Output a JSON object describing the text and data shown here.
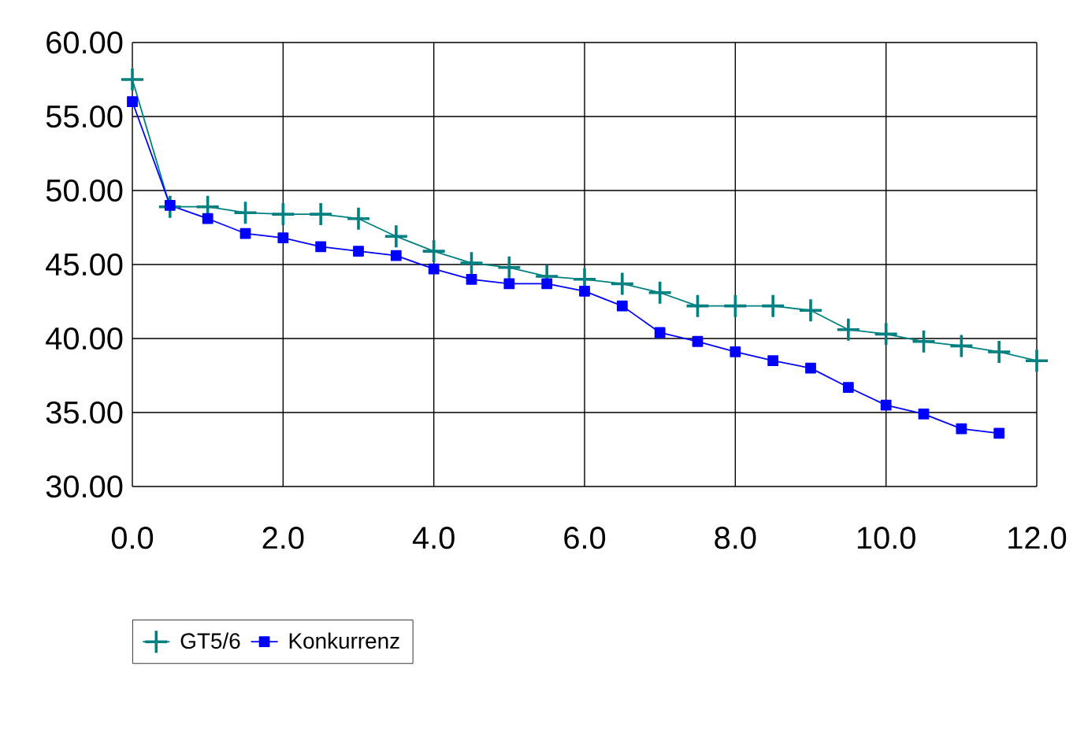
{
  "chart_data": {
    "type": "line",
    "x": [
      0,
      0.5,
      1,
      1.5,
      2,
      2.5,
      3,
      3.5,
      4,
      4.5,
      5,
      5.5,
      6,
      6.5,
      7,
      7.5,
      8,
      8.5,
      9,
      9.5,
      10,
      10.5,
      11,
      11.5,
      12
    ],
    "series": [
      {
        "name": "GT5/6",
        "color": "#008080",
        "marker": "cross",
        "values": [
          57.5,
          48.9,
          48.9,
          48.5,
          48.4,
          48.4,
          48.1,
          46.9,
          45.9,
          45.1,
          44.8,
          44.2,
          44.0,
          43.7,
          43.1,
          42.2,
          42.2,
          42.2,
          41.9,
          40.6,
          40.3,
          39.8,
          39.5,
          39.1,
          38.5
        ]
      },
      {
        "name": "Konkurrenz",
        "color": "#0000ff",
        "marker": "square",
        "values": [
          56.0,
          49.0,
          48.1,
          47.1,
          46.8,
          46.2,
          45.9,
          45.6,
          44.7,
          44.0,
          43.7,
          43.7,
          43.2,
          42.2,
          40.4,
          39.8,
          39.1,
          38.5,
          38.0,
          36.7,
          35.5,
          34.9,
          33.9,
          33.6,
          null
        ]
      }
    ],
    "xlim": [
      0,
      12
    ],
    "ylim": [
      30,
      60
    ],
    "xticks": [
      {
        "value": 0,
        "label": "0.0"
      },
      {
        "value": 2,
        "label": "2.0"
      },
      {
        "value": 4,
        "label": "4.0"
      },
      {
        "value": 6,
        "label": "6.0"
      },
      {
        "value": 8,
        "label": "8.0"
      },
      {
        "value": 10,
        "label": "10.0"
      },
      {
        "value": 12,
        "label": "12.0"
      }
    ],
    "yticks": [
      {
        "value": 30,
        "label": "30.00"
      },
      {
        "value": 35,
        "label": "35.00"
      },
      {
        "value": 40,
        "label": "40.00"
      },
      {
        "value": 45,
        "label": "45.00"
      },
      {
        "value": 50,
        "label": "50.00"
      },
      {
        "value": 55,
        "label": "55.00"
      },
      {
        "value": 60,
        "label": "60.00"
      }
    ],
    "grid": true,
    "legend": "bottom left"
  }
}
